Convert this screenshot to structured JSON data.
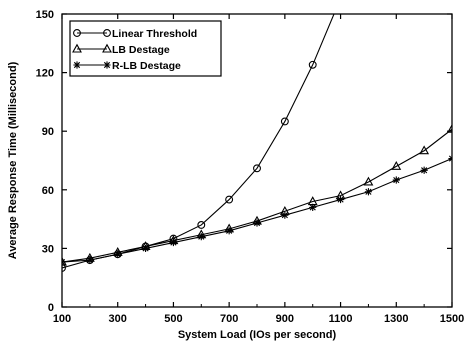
{
  "chart_data": {
    "type": "line",
    "title": "",
    "xlabel": "System Load (IOs per second)",
    "ylabel": "Average Response Time (Millisecond)",
    "xlim": [
      100,
      1500
    ],
    "ylim": [
      0,
      150
    ],
    "xticks": [
      100,
      300,
      500,
      700,
      900,
      1100,
      1300,
      1500
    ],
    "yticks": [
      0,
      30,
      60,
      90,
      120,
      150
    ],
    "grid": false,
    "legend_position": "top-left",
    "series": [
      {
        "name": "Linear Threshold",
        "marker": "circle",
        "x": [
          100,
          200,
          300,
          400,
          500,
          600,
          700,
          800,
          900,
          1000,
          1100
        ],
        "y": [
          20,
          24,
          27,
          31,
          35,
          42,
          55,
          71,
          95,
          124,
          158
        ]
      },
      {
        "name": "LB Destage",
        "marker": "triangle",
        "x": [
          100,
          200,
          300,
          400,
          500,
          600,
          700,
          800,
          900,
          1000,
          1100,
          1200,
          1300,
          1400,
          1500
        ],
        "y": [
          23,
          25,
          28,
          31,
          34,
          37,
          40,
          44,
          49,
          54,
          57,
          64,
          72,
          80,
          91
        ]
      },
      {
        "name": "R-LB Destage",
        "marker": "star",
        "x": [
          100,
          200,
          300,
          400,
          500,
          600,
          700,
          800,
          900,
          1000,
          1100,
          1200,
          1300,
          1400,
          1500
        ],
        "y": [
          23,
          24,
          27,
          30,
          33,
          36,
          39,
          43,
          47,
          51,
          55,
          59,
          65,
          70,
          76
        ]
      }
    ]
  }
}
